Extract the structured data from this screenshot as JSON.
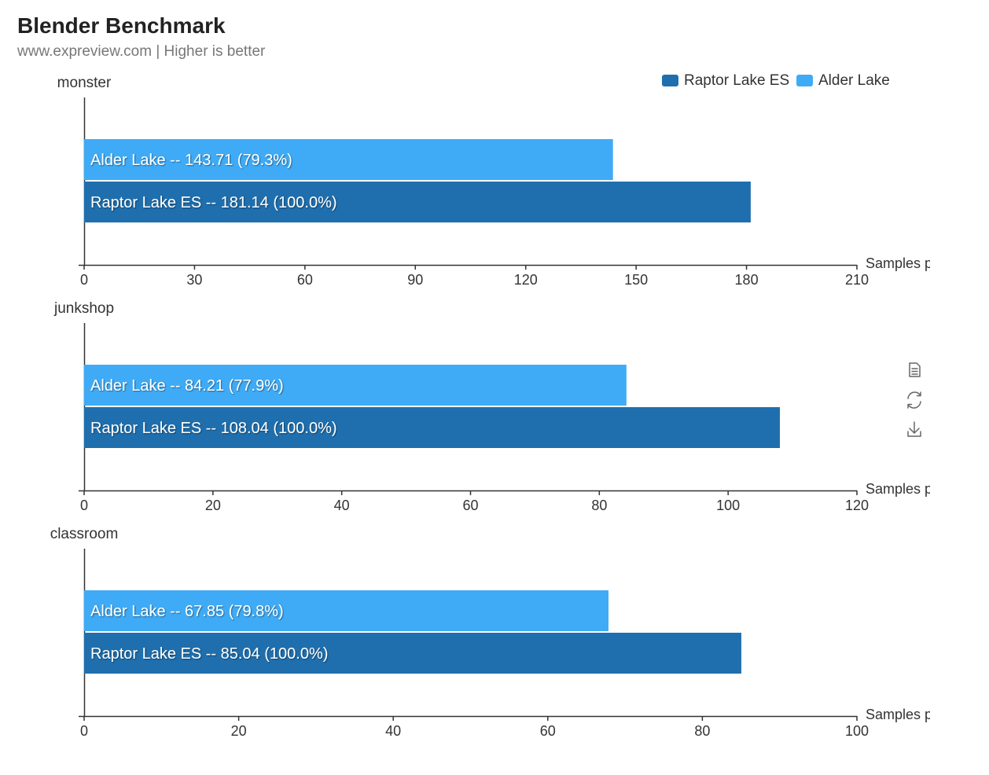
{
  "title": "Blender Benchmark",
  "subtitle": "www.expreview.com | Higher is better",
  "legend": [
    {
      "name": "Raptor Lake ES",
      "color": "#1f6fae"
    },
    {
      "name": "Alder Lake",
      "color": "#3fabf6"
    }
  ],
  "toolbox": {
    "icons": [
      "data-view-icon",
      "restore-icon",
      "save-image-icon"
    ]
  },
  "chart_data": [
    {
      "type": "bar",
      "orientation": "horizontal",
      "title": "monster",
      "xlabel": "Samples per minute",
      "xlim": [
        0,
        210
      ],
      "xticks": [
        0,
        30,
        60,
        90,
        120,
        150,
        180,
        210
      ],
      "categories": [
        "Raptor Lake ES",
        "Alder Lake"
      ],
      "series": [
        {
          "name": "Alder Lake",
          "value": 143.71,
          "percent": "79.3%",
          "label": "Alder Lake  --  143.71 (79.3%)"
        },
        {
          "name": "Raptor Lake ES",
          "value": 181.14,
          "percent": "100.0%",
          "label": "Raptor Lake ES  --  181.14 (100.0%)"
        }
      ]
    },
    {
      "type": "bar",
      "orientation": "horizontal",
      "title": "junkshop",
      "xlabel": "Samples per minute",
      "xlim": [
        0,
        120
      ],
      "xticks": [
        0,
        20,
        40,
        60,
        80,
        100,
        120
      ],
      "categories": [
        "Raptor Lake ES",
        "Alder Lake"
      ],
      "series": [
        {
          "name": "Alder Lake",
          "value": 84.21,
          "percent": "77.9%",
          "label": "Alder Lake  --  84.21 (77.9%)"
        },
        {
          "name": "Raptor Lake ES",
          "value": 108.04,
          "percent": "100.0%",
          "label": "Raptor Lake ES  --  108.04 (100.0%)"
        }
      ]
    },
    {
      "type": "bar",
      "orientation": "horizontal",
      "title": "classroom",
      "xlabel": "Samples per minute",
      "xlim": [
        0,
        100
      ],
      "xticks": [
        0,
        20,
        40,
        60,
        80,
        100
      ],
      "categories": [
        "Raptor Lake ES",
        "Alder Lake"
      ],
      "series": [
        {
          "name": "Alder Lake",
          "value": 67.85,
          "percent": "79.8%",
          "label": "Alder Lake  --  67.85 (79.8%)"
        },
        {
          "name": "Raptor Lake ES",
          "value": 85.04,
          "percent": "100.0%",
          "label": "Raptor Lake ES  --  85.04 (100.0%)"
        }
      ]
    }
  ]
}
